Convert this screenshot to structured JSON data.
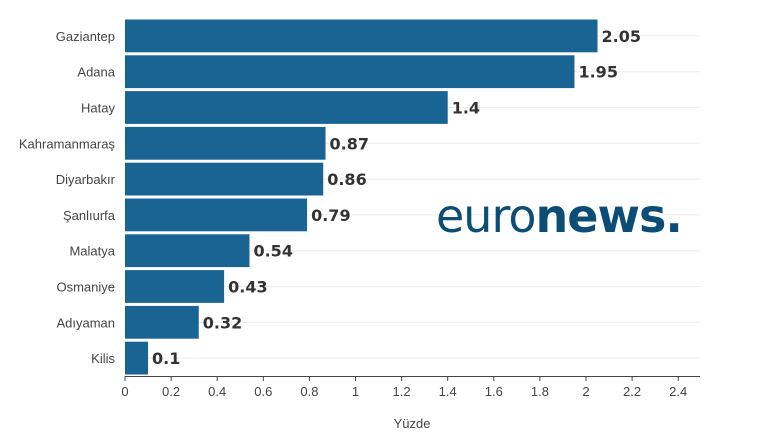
{
  "chart_data": {
    "type": "bar",
    "orientation": "horizontal",
    "categories": [
      "Gaziantep",
      "Adana",
      "Hatay",
      "Kahramanmaraş",
      "Diyarbakır",
      "Şanlıurfa",
      "Malatya",
      "Osmaniye",
      "Adıyaman",
      "Kilis"
    ],
    "values": [
      2.05,
      1.95,
      1.4,
      0.87,
      0.86,
      0.79,
      0.54,
      0.43,
      0.32,
      0.1
    ],
    "value_labels": [
      "2.05",
      "1.95",
      "1.4",
      "0.87",
      "0.86",
      "0.79",
      "0.54",
      "0.43",
      "0.32",
      "0.1"
    ],
    "xlabel": "Yüzde",
    "ylabel": "",
    "xlim": [
      0,
      2.5
    ],
    "xticks": [
      0,
      0.2,
      0.4,
      0.6,
      0.8,
      1,
      1.2,
      1.4,
      1.6,
      1.8,
      2,
      2.2,
      2.4
    ],
    "xtick_labels": [
      "0",
      "0.2",
      "0.4",
      "0.6",
      "0.8",
      "1",
      "1.2",
      "1.4",
      "1.6",
      "1.8",
      "2",
      "2.2",
      "2.4"
    ],
    "grid": true,
    "bar_color": "#1a6493",
    "legend": "none"
  },
  "watermark": {
    "part1": "euro",
    "part2": "news.",
    "color": "#0b4d76"
  }
}
